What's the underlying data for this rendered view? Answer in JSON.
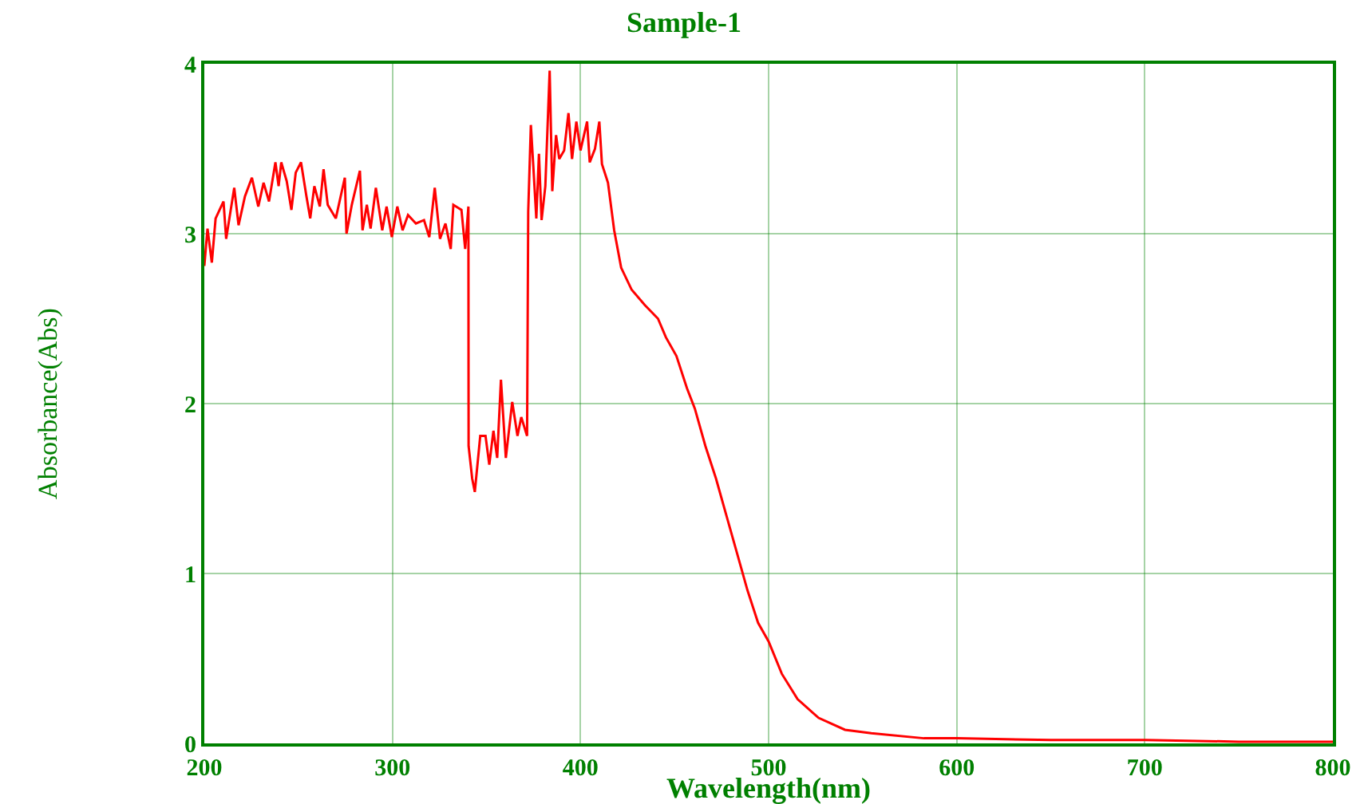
{
  "chart_data": {
    "type": "line",
    "title": "Sample-1",
    "xlabel": "Wavelength(nm)",
    "ylabel": "Absorbance(Abs)",
    "xlim": [
      200,
      800
    ],
    "xticks": [
      200,
      300,
      400,
      500,
      600,
      700,
      800
    ],
    "ylim": [
      0,
      4
    ],
    "yticks": [
      0,
      1,
      2,
      3,
      4
    ],
    "grid": true,
    "marker": "none",
    "line_style": "solid",
    "x": [
      200,
      201.7,
      204,
      206,
      210.2,
      211.6,
      215.9,
      218.2,
      221.6,
      225.3,
      228.7,
      231.5,
      234.4,
      237.8,
      239.5,
      240.9,
      243.8,
      246.3,
      248.6,
      251.4,
      254.3,
      256.3,
      258.5,
      261.4,
      263.4,
      265.6,
      269.9,
      274.7,
      275.6,
      278.4,
      282.7,
      284.1,
      286.4,
      288.4,
      291.2,
      294.6,
      296.9,
      299.7,
      302.6,
      305.4,
      308.3,
      312.5,
      316.8,
      319.6,
      322.5,
      325.3,
      328.2,
      331,
      332.4,
      336.7,
      338.7,
      340.4,
      340.5,
      342.4,
      343.8,
      346.7,
      349.5,
      351.5,
      353.7,
      355.7,
      357.7,
      360.3,
      363.7,
      366.5,
      368.5,
      371.6,
      372.2,
      373.6,
      375,
      376.5,
      377.9,
      379.3,
      381.3,
      383.6,
      385,
      387,
      388.7,
      391.3,
      393.6,
      395.5,
      397.8,
      400,
      403.5,
      404.9,
      407.7,
      410,
      411.4,
      414.6,
      417.9,
      421.6,
      427.2,
      434.2,
      441.2,
      445.4,
      451,
      456.6,
      460.8,
      466.4,
      472,
      477.6,
      483.2,
      488.8,
      494.4,
      500,
      507,
      515.4,
      526.6,
      540.6,
      554.6,
      582.6,
      600,
      650,
      700,
      750,
      800
    ],
    "series": [
      {
        "color": "#ff0000",
        "values": [
          2.81,
          3.03,
          2.83,
          3.09,
          3.19,
          2.97,
          3.27,
          3.05,
          3.22,
          3.33,
          3.16,
          3.3,
          3.19,
          3.42,
          3.28,
          3.42,
          3.31,
          3.14,
          3.36,
          3.42,
          3.22,
          3.09,
          3.28,
          3.16,
          3.38,
          3.17,
          3.09,
          3.33,
          3.0,
          3.17,
          3.37,
          3.02,
          3.17,
          3.03,
          3.27,
          3.02,
          3.16,
          2.98,
          3.16,
          3.02,
          3.11,
          3.06,
          3.08,
          2.98,
          3.27,
          2.97,
          3.06,
          2.91,
          3.17,
          3.14,
          2.91,
          3.16,
          1.75,
          1.56,
          1.48,
          1.81,
          1.81,
          1.64,
          1.84,
          1.68,
          2.14,
          1.68,
          2.01,
          1.81,
          1.92,
          1.81,
          3.13,
          3.64,
          3.38,
          3.09,
          3.47,
          3.08,
          3.28,
          3.96,
          3.25,
          3.58,
          3.44,
          3.49,
          3.71,
          3.44,
          3.66,
          3.49,
          3.66,
          3.42,
          3.5,
          3.66,
          3.41,
          3.3,
          3.02,
          2.8,
          2.67,
          2.58,
          2.5,
          2.39,
          2.28,
          2.09,
          1.97,
          1.75,
          1.56,
          1.34,
          1.12,
          0.9,
          0.71,
          0.6,
          0.41,
          0.26,
          0.15,
          0.08,
          0.06,
          0.03,
          0.03,
          0.02,
          0.02,
          0.01,
          0.01
        ]
      }
    ]
  }
}
